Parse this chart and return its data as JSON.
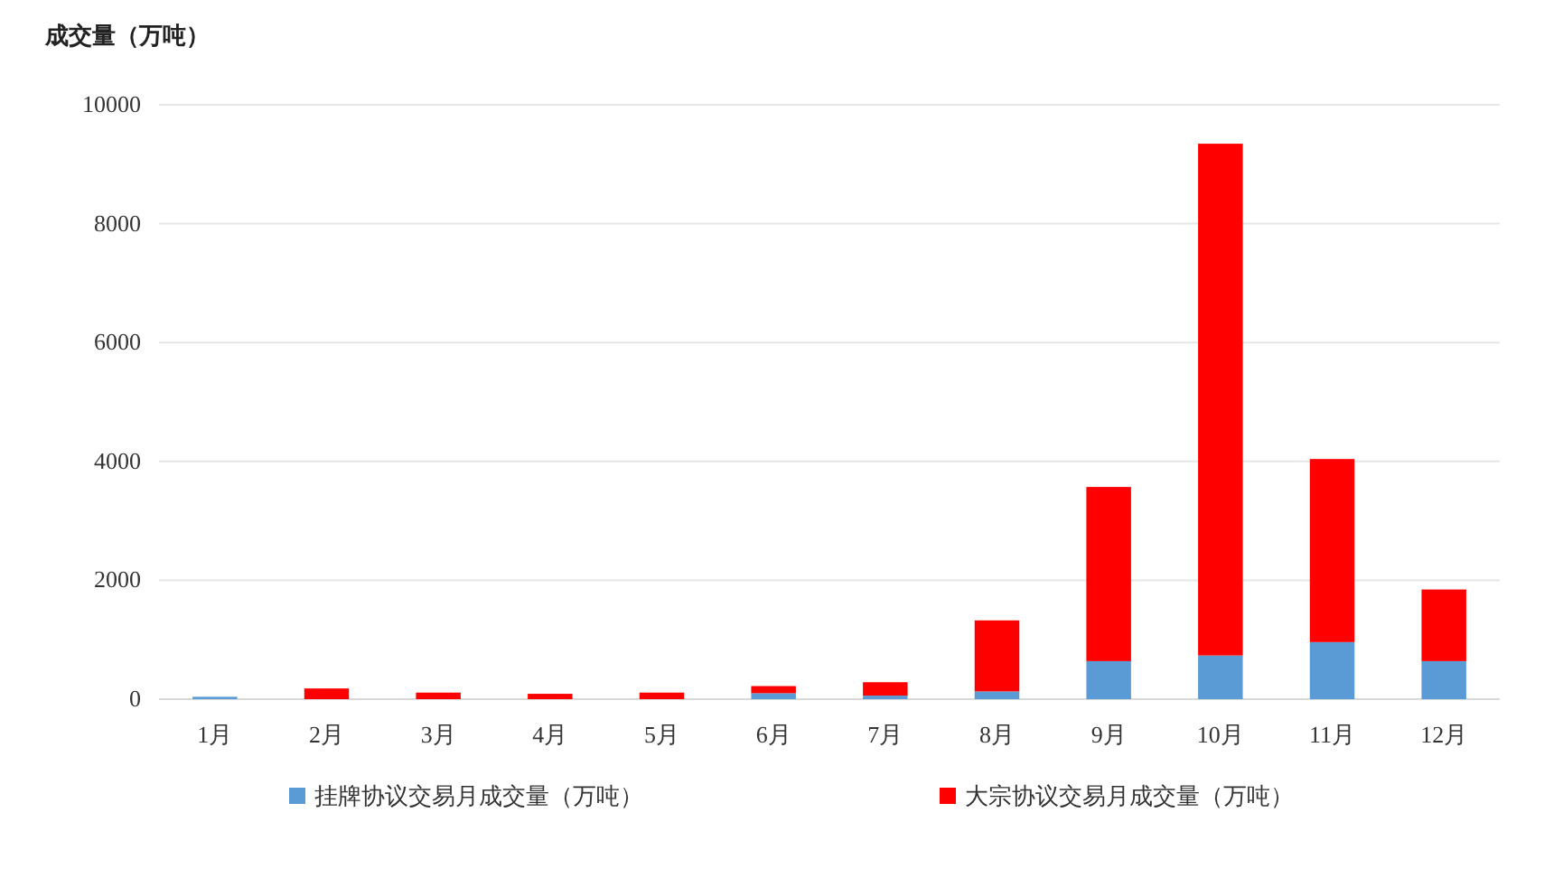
{
  "chart_data": {
    "type": "bar",
    "stacked": true,
    "ylabel": "成交量（万吨）",
    "categories": [
      "1月",
      "2月",
      "3月",
      "4月",
      "5月",
      "6月",
      "7月",
      "8月",
      "9月",
      "10月",
      "11月",
      "12月"
    ],
    "series": [
      {
        "name": "挂牌协议交易月成交量（万吨）",
        "color": "#5b9bd5",
        "values": [
          40,
          0,
          0,
          0,
          0,
          100,
          60,
          130,
          640,
          735,
          960,
          640
        ]
      },
      {
        "name": "大宗协议交易月成交量（万吨）",
        "color": "#ff0000",
        "values": [
          0,
          180,
          110,
          90,
          110,
          120,
          225,
          1195,
          2930,
          8610,
          3080,
          1205
        ]
      }
    ],
    "ylim": [
      0,
      10000
    ],
    "yticks": [
      0,
      2000,
      4000,
      6000,
      8000,
      10000
    ],
    "grid": "y",
    "legend": "bottom"
  }
}
